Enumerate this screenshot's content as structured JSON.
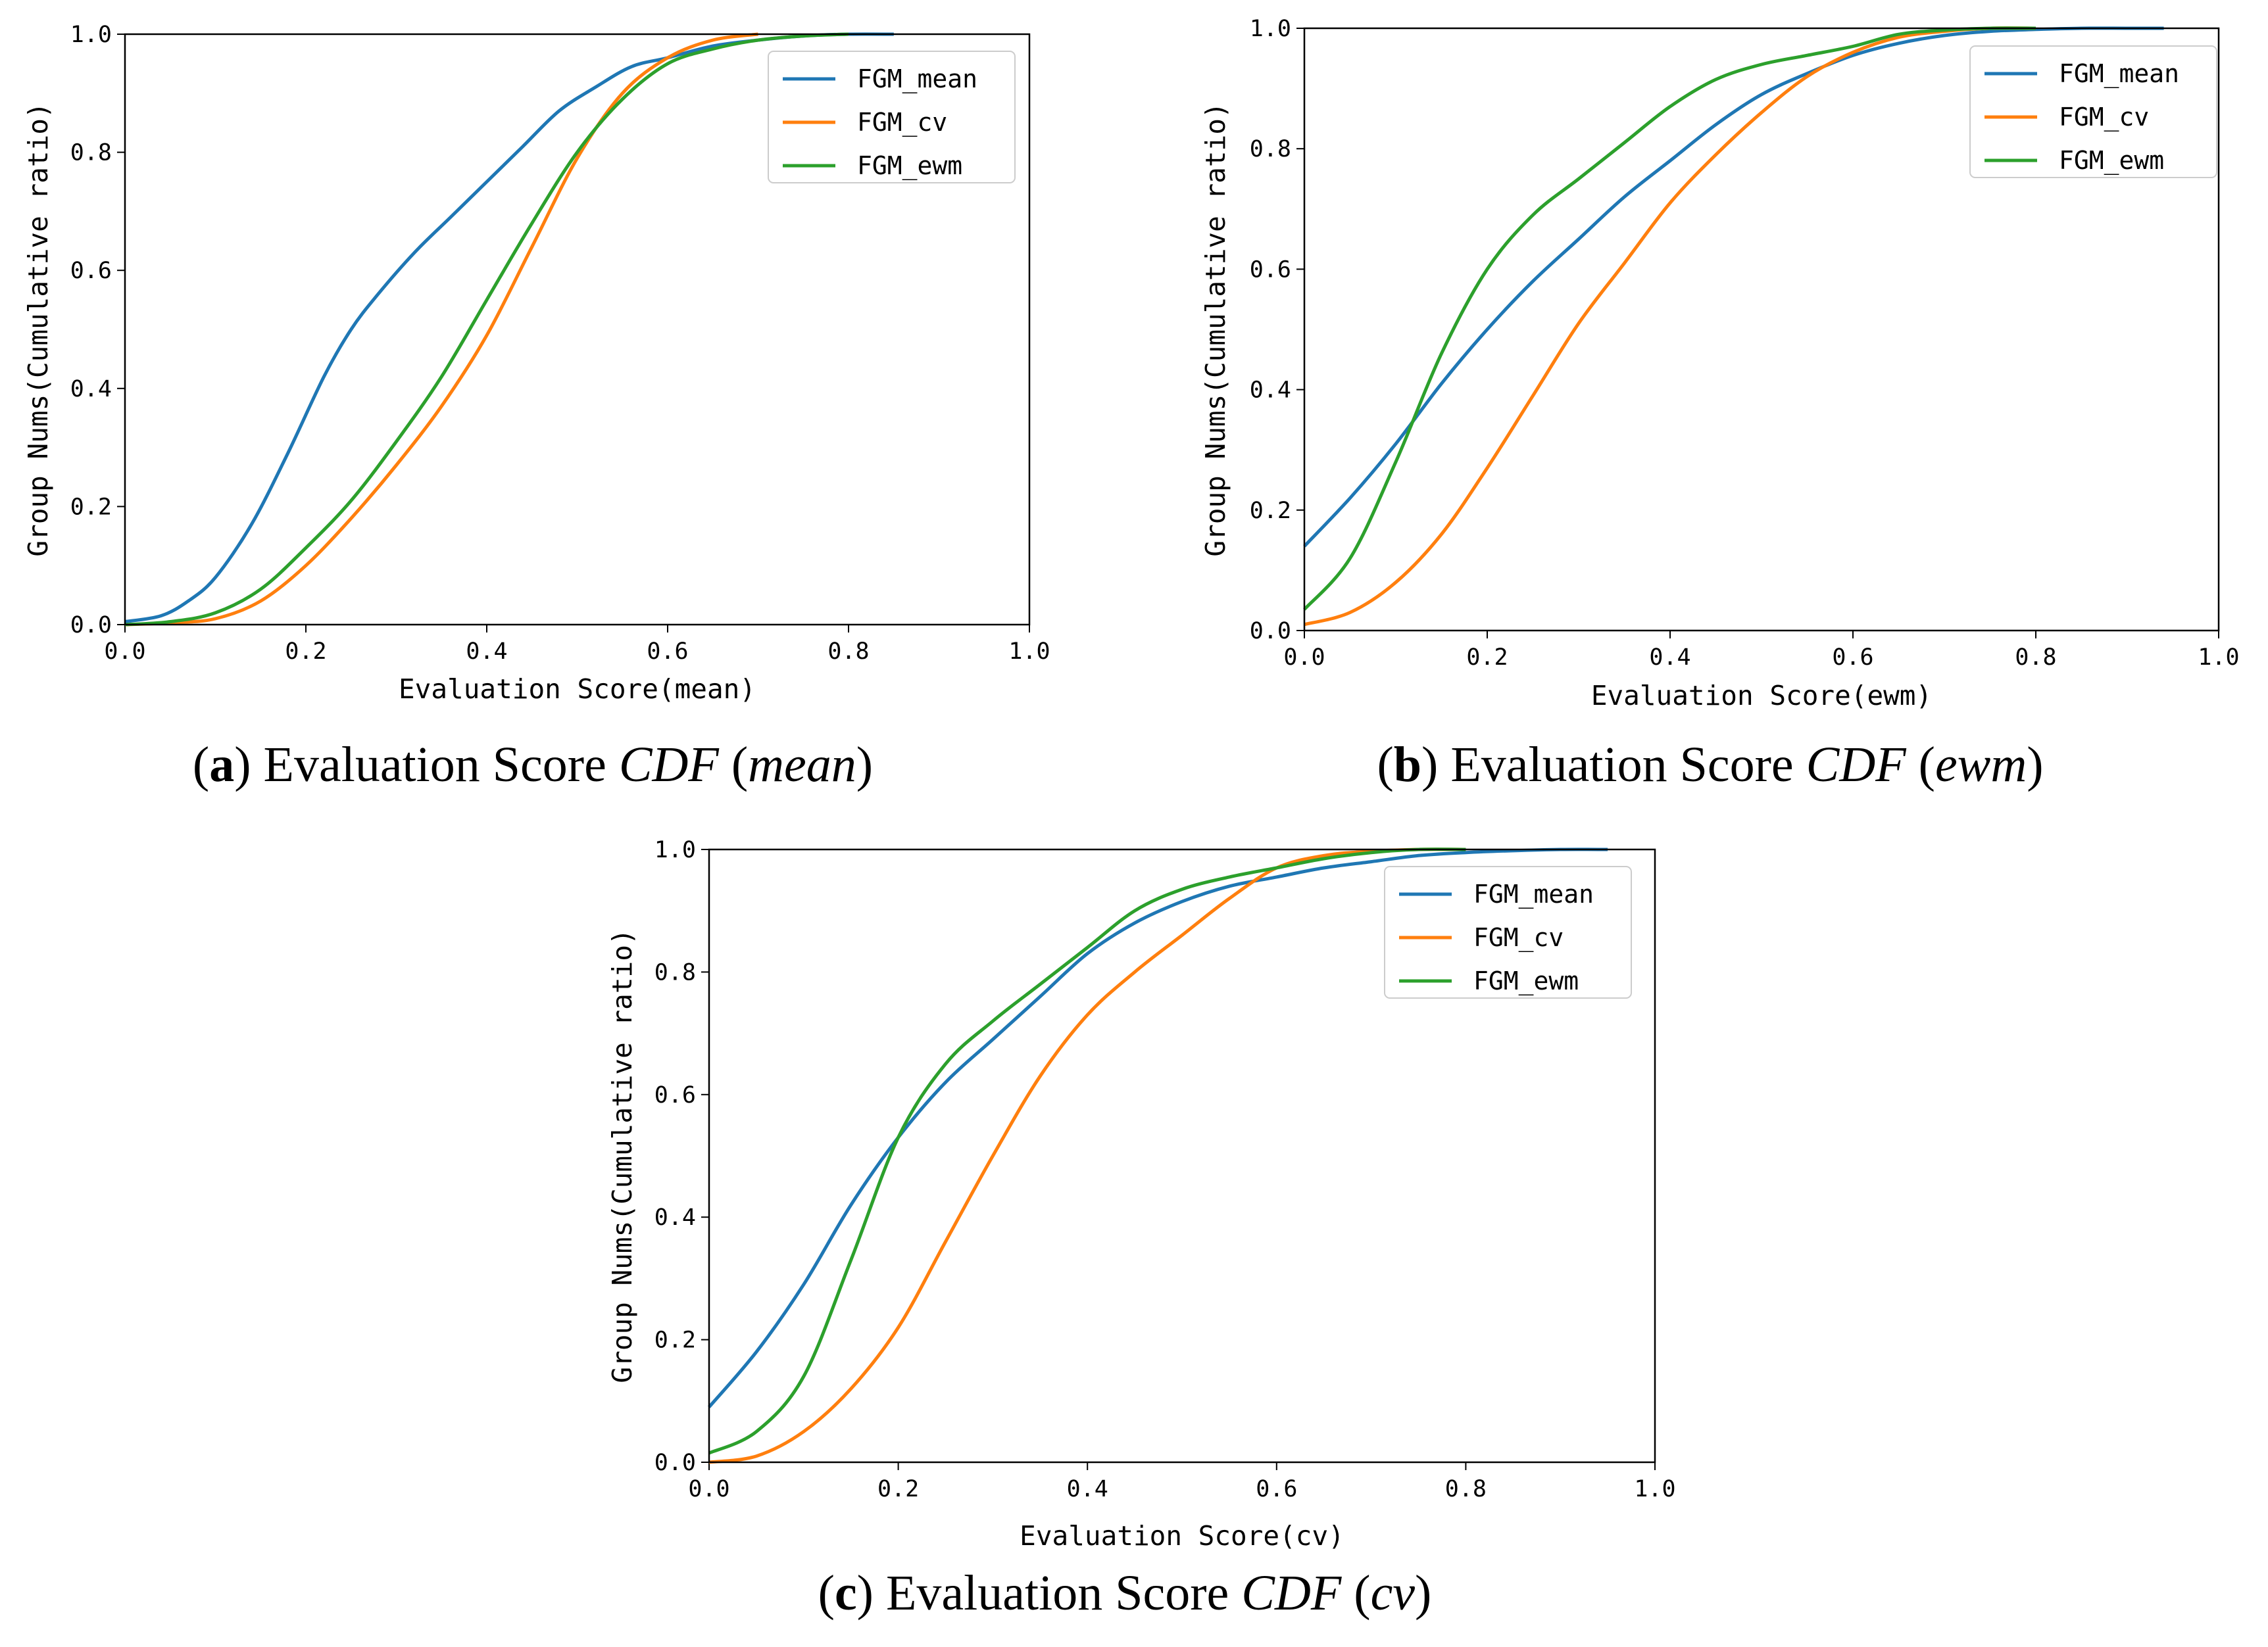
{
  "colors": {
    "FGM_mean": "#1f77b4",
    "FGM_cv": "#ff7f0e",
    "FGM_ewm": "#2ca02c"
  },
  "chart_data": [
    {
      "type": "line",
      "xlabel": "Evaluation Score(mean)",
      "ylabel": "Group Nums(Cumulative ratio)",
      "xlim": [
        0.0,
        1.0
      ],
      "ylim": [
        0.0,
        1.0
      ],
      "xticks": [
        "0.0",
        "0.2",
        "0.4",
        "0.6",
        "0.8",
        "1.0"
      ],
      "yticks": [
        "0.0",
        "0.2",
        "0.4",
        "0.6",
        "0.8",
        "1.0"
      ],
      "legend_position": "top-right",
      "caption": {
        "letter": "a",
        "prefix": "Evaluation Score ",
        "cdf": "CDF",
        "open": " (",
        "term": "mean",
        "close": ")"
      },
      "series": [
        {
          "name": "FGM_mean",
          "x": [
            0.0,
            0.04,
            0.07,
            0.1,
            0.14,
            0.18,
            0.22,
            0.25,
            0.28,
            0.32,
            0.36,
            0.4,
            0.44,
            0.48,
            0.52,
            0.56,
            0.6,
            0.65,
            0.7,
            0.75,
            0.8,
            0.85
          ],
          "y": [
            0.005,
            0.015,
            0.04,
            0.08,
            0.17,
            0.29,
            0.42,
            0.5,
            0.56,
            0.63,
            0.69,
            0.75,
            0.81,
            0.87,
            0.91,
            0.945,
            0.96,
            0.98,
            0.99,
            0.997,
            1.0,
            1.0
          ]
        },
        {
          "name": "FGM_cv",
          "x": [
            0.0,
            0.05,
            0.1,
            0.15,
            0.2,
            0.25,
            0.3,
            0.35,
            0.4,
            0.45,
            0.5,
            0.55,
            0.6,
            0.65,
            0.7
          ],
          "y": [
            0.0,
            0.003,
            0.01,
            0.04,
            0.1,
            0.18,
            0.27,
            0.37,
            0.49,
            0.64,
            0.79,
            0.9,
            0.96,
            0.99,
            1.0
          ]
        },
        {
          "name": "FGM_ewm",
          "x": [
            0.0,
            0.05,
            0.1,
            0.15,
            0.2,
            0.25,
            0.3,
            0.35,
            0.4,
            0.45,
            0.5,
            0.55,
            0.6,
            0.65,
            0.7,
            0.75,
            0.8
          ],
          "y": [
            0.0,
            0.005,
            0.02,
            0.06,
            0.13,
            0.21,
            0.31,
            0.42,
            0.55,
            0.68,
            0.8,
            0.89,
            0.95,
            0.975,
            0.99,
            0.997,
            1.0
          ]
        }
      ]
    },
    {
      "type": "line",
      "xlabel": "Evaluation Score(ewm)",
      "ylabel": "Group Nums(Cumulative ratio)",
      "xlim": [
        0.0,
        1.0
      ],
      "ylim": [
        0.0,
        1.0
      ],
      "xticks": [
        "0.0",
        "0.2",
        "0.4",
        "0.6",
        "0.8",
        "1.0"
      ],
      "yticks": [
        "0.0",
        "0.2",
        "0.4",
        "0.6",
        "0.8",
        "1.0"
      ],
      "legend_position": "top-right",
      "caption": {
        "letter": "b",
        "prefix": "Evaluation Score ",
        "cdf": "CDF",
        "open": " (",
        "term": "ewm",
        "close": ")"
      },
      "series": [
        {
          "name": "FGM_mean",
          "x": [
            0.0,
            0.05,
            0.1,
            0.15,
            0.2,
            0.25,
            0.3,
            0.35,
            0.4,
            0.45,
            0.5,
            0.55,
            0.6,
            0.65,
            0.7,
            0.75,
            0.8,
            0.85,
            0.9,
            0.94
          ],
          "y": [
            0.14,
            0.22,
            0.31,
            0.41,
            0.5,
            0.58,
            0.65,
            0.72,
            0.78,
            0.84,
            0.89,
            0.925,
            0.955,
            0.975,
            0.988,
            0.995,
            0.998,
            1.0,
            1.0,
            1.0
          ]
        },
        {
          "name": "FGM_cv",
          "x": [
            0.0,
            0.05,
            0.1,
            0.15,
            0.2,
            0.25,
            0.3,
            0.35,
            0.4,
            0.45,
            0.5,
            0.55,
            0.6,
            0.65,
            0.7,
            0.75,
            0.8
          ],
          "y": [
            0.01,
            0.03,
            0.08,
            0.16,
            0.27,
            0.39,
            0.51,
            0.61,
            0.71,
            0.79,
            0.86,
            0.92,
            0.96,
            0.985,
            0.995,
            1.0,
            1.0
          ]
        },
        {
          "name": "FGM_ewm",
          "x": [
            0.0,
            0.05,
            0.1,
            0.15,
            0.2,
            0.25,
            0.3,
            0.35,
            0.4,
            0.45,
            0.5,
            0.55,
            0.6,
            0.65,
            0.7,
            0.75,
            0.8
          ],
          "y": [
            0.035,
            0.12,
            0.28,
            0.46,
            0.6,
            0.69,
            0.75,
            0.81,
            0.87,
            0.915,
            0.94,
            0.955,
            0.97,
            0.99,
            0.997,
            1.0,
            1.0
          ]
        }
      ]
    },
    {
      "type": "line",
      "xlabel": "Evaluation Score(cv)",
      "ylabel": "Group Nums(Cumulative ratio)",
      "xlim": [
        0.0,
        1.0
      ],
      "ylim": [
        0.0,
        1.0
      ],
      "xticks": [
        "0.0",
        "0.2",
        "0.4",
        "0.6",
        "0.8",
        "1.0"
      ],
      "yticks": [
        "0.0",
        "0.2",
        "0.4",
        "0.6",
        "0.8",
        "1.0"
      ],
      "legend_position": "top-right",
      "caption": {
        "letter": "c",
        "prefix": "Evaluation Score ",
        "cdf": "CDF",
        "open": " (",
        "term": "cv",
        "close": ")"
      },
      "series": [
        {
          "name": "FGM_mean",
          "x": [
            0.0,
            0.05,
            0.1,
            0.15,
            0.2,
            0.25,
            0.3,
            0.35,
            0.4,
            0.45,
            0.5,
            0.55,
            0.6,
            0.65,
            0.7,
            0.75,
            0.8,
            0.85,
            0.9,
            0.95
          ],
          "y": [
            0.09,
            0.18,
            0.29,
            0.42,
            0.53,
            0.62,
            0.69,
            0.76,
            0.83,
            0.88,
            0.915,
            0.94,
            0.955,
            0.97,
            0.98,
            0.99,
            0.995,
            0.998,
            1.0,
            1.0
          ]
        },
        {
          "name": "FGM_cv",
          "x": [
            0.0,
            0.05,
            0.1,
            0.15,
            0.2,
            0.25,
            0.3,
            0.35,
            0.4,
            0.45,
            0.5,
            0.55,
            0.6,
            0.65,
            0.7,
            0.75,
            0.8
          ],
          "y": [
            0.0,
            0.01,
            0.05,
            0.12,
            0.22,
            0.36,
            0.5,
            0.63,
            0.73,
            0.8,
            0.86,
            0.92,
            0.97,
            0.99,
            0.997,
            1.0,
            1.0
          ]
        },
        {
          "name": "FGM_ewm",
          "x": [
            0.0,
            0.05,
            0.1,
            0.15,
            0.2,
            0.25,
            0.3,
            0.35,
            0.4,
            0.45,
            0.5,
            0.55,
            0.6,
            0.65,
            0.7,
            0.75,
            0.8
          ],
          "y": [
            0.015,
            0.05,
            0.14,
            0.33,
            0.53,
            0.65,
            0.72,
            0.78,
            0.84,
            0.9,
            0.935,
            0.955,
            0.97,
            0.985,
            0.995,
            1.0,
            1.0
          ]
        }
      ]
    }
  ]
}
